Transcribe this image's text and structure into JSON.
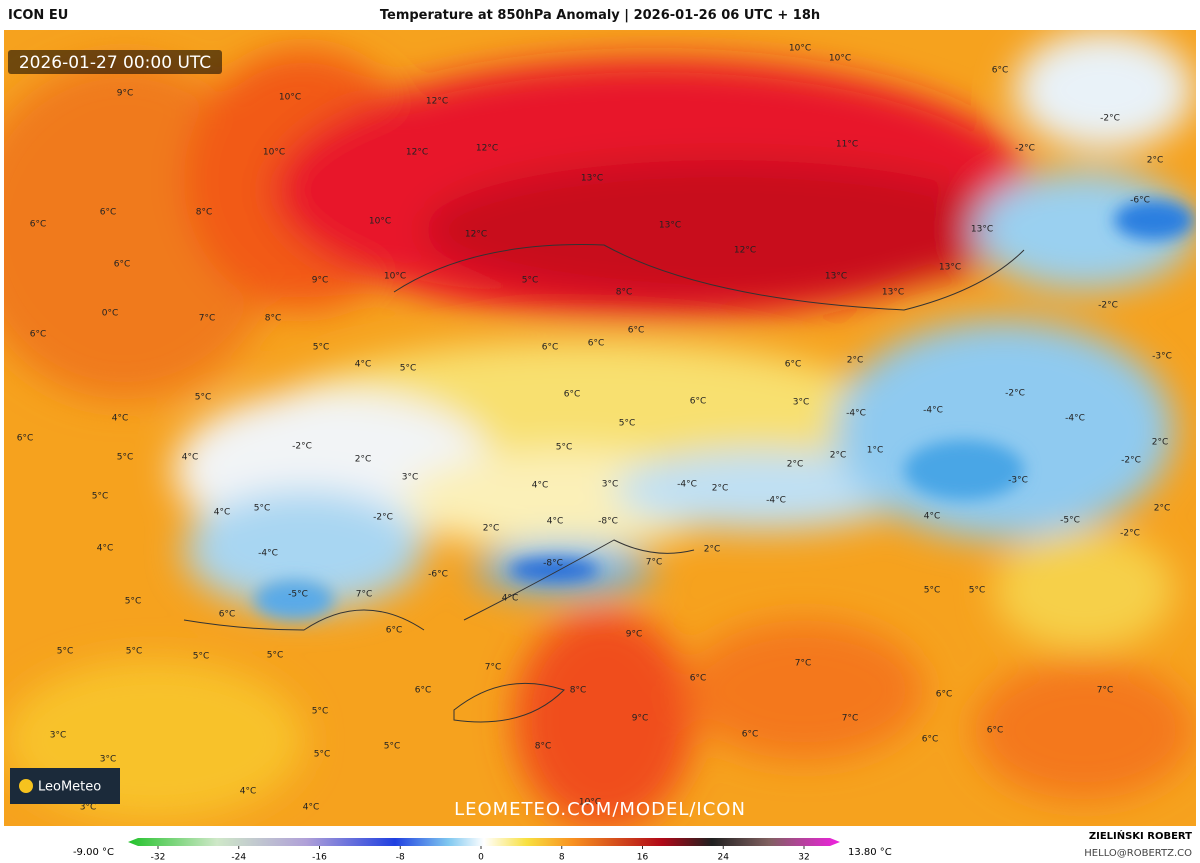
{
  "header": {
    "model": "ICON EU",
    "title": "Temperature at 850hPa Anomaly | 2026-01-26 06 UTC + 18h"
  },
  "map": {
    "timestamp": "2026-01-27 00:00 UTC",
    "watermark": "LEOMETEO.COM/MODEL/ICON",
    "logo": "LeoMeteo",
    "labels": [
      "10°C",
      "10°C",
      "6°C",
      "9°C",
      "10°C",
      "12°C",
      "-2°C",
      "12°C",
      "10°C",
      "12°C",
      "11°C",
      "-2°C",
      "2°C",
      "13°C",
      "6°C",
      "8°C",
      "10°C",
      "13°C",
      "12°C",
      "13°C",
      "-6°C",
      "6°C",
      "12°C",
      "6°C",
      "9°C",
      "10°C",
      "5°C",
      "13°C",
      "13°C",
      "13°C",
      "8°C",
      "0°C",
      "7°C",
      "8°C",
      "6°C",
      "6°C",
      "-2°C",
      "5°C",
      "6°C",
      "6°C",
      "2°C",
      "4°C",
      "5°C",
      "6°C",
      "-3°C",
      "6°C",
      "6°C",
      "3°C",
      "-4°C",
      "-4°C",
      "-2°C",
      "4°C",
      "5°C",
      "5°C",
      "-4°C",
      "6°C",
      "5°C",
      "-2°C",
      "1°C",
      "2°C",
      "2°C",
      "2°C",
      "4°C",
      "5°C",
      "2°C",
      "3°C",
      "-2°C",
      "4°C",
      "3°C",
      "-4°C",
      "2°C",
      "-3°C",
      "5°C",
      "4°C",
      "5°C",
      "-2°C",
      "4°C",
      "-8°C",
      "-4°C",
      "2°C",
      "4°C",
      "-5°C",
      "2°C",
      "4°C",
      "-4°C",
      "2°C",
      "-2°C",
      "-8°C",
      "7°C",
      "-6°C",
      "7°C",
      "-5°C",
      "4°C",
      "5°C",
      "6°C",
      "5°C",
      "5°C",
      "9°C",
      "6°C",
      "5°C",
      "5°C",
      "5°C",
      "5°C",
      "7°C",
      "7°C",
      "6°C",
      "8°C",
      "6°C",
      "6°C",
      "7°C",
      "5°C",
      "9°C",
      "7°C",
      "6°C",
      "3°C",
      "5°C",
      "8°C",
      "6°C",
      "6°C",
      "3°C",
      "5°C",
      "4°C",
      "4°C",
      "3°C",
      "10°C"
    ]
  },
  "colorbar": {
    "min_label": "-9.00 °C",
    "max_label": "13.80 °C",
    "ticks": [
      "-32",
      "-24",
      "-16",
      "-8",
      "0",
      "8",
      "16",
      "24",
      "32"
    ]
  },
  "footer": {
    "author": "ZIELIŃSKI ROBERT",
    "contact": "HELLO@ROBERTZ.CO"
  }
}
